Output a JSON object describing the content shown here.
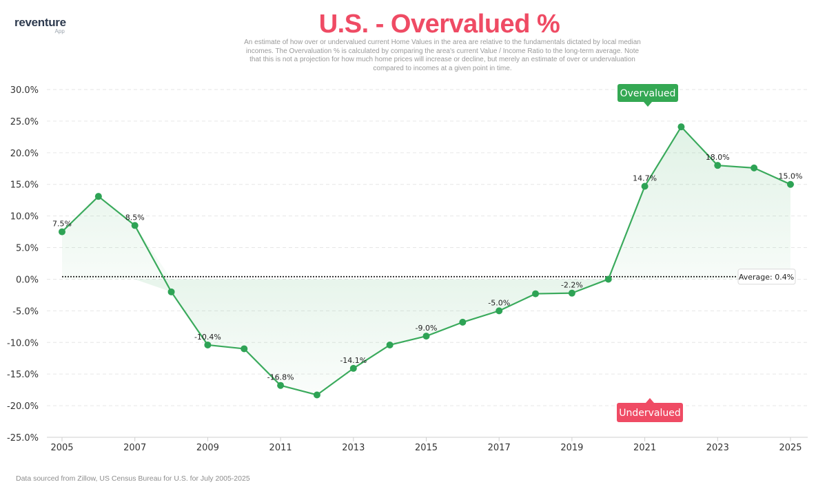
{
  "logo": {
    "name": "reventure",
    "sub": "App"
  },
  "header": {
    "title": "U.S. - Overvalued %",
    "subtitle": "An estimate of how over or undervalued current Home Values in the area are relative to the fundamentals dictated by local median incomes. The Overvaluation % is calculated by comparing the area's current Value / Income Ratio to the long-term average. Note that this is not a projection for how much home prices will increase or decline, but merely an estimate of over or undervaluation compared to incomes at a given point in time."
  },
  "footer": {
    "text": "Data sourced from Zillow, US Census Bureau for U.S. for July 2005-2025"
  },
  "colors": {
    "line": "#3aaa5c",
    "point": "#2ea355",
    "title": "#ef4b64",
    "overvalued": "#34a853",
    "undervalued": "#ef4b64"
  },
  "chart_data": {
    "type": "line",
    "title": "U.S. - Overvalued %",
    "x": [
      2005,
      2006,
      2007,
      2008,
      2009,
      2010,
      2011,
      2012,
      2013,
      2014,
      2015,
      2016,
      2017,
      2018,
      2019,
      2020,
      2021,
      2022,
      2023,
      2024,
      2025
    ],
    "series": [
      {
        "name": "Overvalued %",
        "values": [
          7.5,
          13.1,
          8.5,
          -2.0,
          -10.4,
          -11.0,
          -16.8,
          -18.3,
          -14.1,
          -10.4,
          -9.0,
          -6.8,
          -5.0,
          -2.3,
          -2.2,
          0.0,
          14.7,
          24.1,
          18.0,
          17.6,
          15.0
        ]
      }
    ],
    "point_labels": [
      {
        "x": 2005,
        "text": "7.5%"
      },
      {
        "x": 2007,
        "text": "8.5%"
      },
      {
        "x": 2009,
        "text": "-10.4%"
      },
      {
        "x": 2011,
        "text": "-16.8%"
      },
      {
        "x": 2013,
        "text": "-14.1%"
      },
      {
        "x": 2015,
        "text": "-9.0%"
      },
      {
        "x": 2017,
        "text": "-5.0%"
      },
      {
        "x": 2019,
        "text": "-2.2%"
      },
      {
        "x": 2021,
        "text": "14.7%"
      },
      {
        "x": 2023,
        "text": "18.0%"
      },
      {
        "x": 2025,
        "text": "15.0%"
      }
    ],
    "x_ticks": [
      2005,
      2007,
      2009,
      2011,
      2013,
      2015,
      2017,
      2019,
      2021,
      2023,
      2025
    ],
    "y_ticks": [
      "30.0%",
      "25.0%",
      "20.0%",
      "15.0%",
      "10.0%",
      "5.0%",
      "0.0%",
      "-5.0%",
      "-10.0%",
      "-15.0%",
      "-20.0%",
      "-25.0%"
    ],
    "y_tick_values": [
      30,
      25,
      20,
      15,
      10,
      5,
      0,
      -5,
      -10,
      -15,
      -20,
      -25
    ],
    "ylim": [
      -25,
      30
    ],
    "xlim": [
      2005,
      2025
    ],
    "average": {
      "value": 0.4,
      "label": "Average: 0.4%"
    },
    "annotations": {
      "overvalued": "Overvalued",
      "undervalued": "Undervalued"
    },
    "grid": true
  }
}
